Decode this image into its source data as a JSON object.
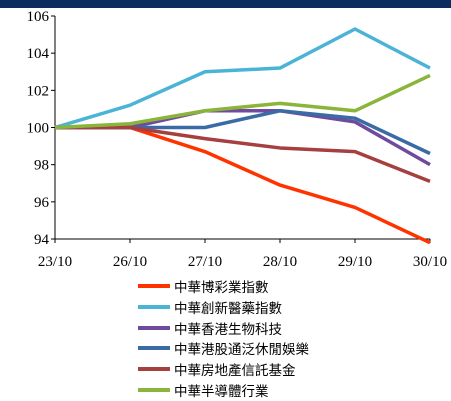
{
  "chart_data": {
    "type": "line",
    "x": [
      "23/10",
      "26/10",
      "27/10",
      "28/10",
      "29/10",
      "30/10"
    ],
    "ylim": [
      94,
      106
    ],
    "yticks": [
      94,
      96,
      98,
      100,
      102,
      104,
      106
    ],
    "grid": false,
    "legend_position": "bottom",
    "series": [
      {
        "name": "中華博彩業指數",
        "color": "#ff3300",
        "values": [
          100,
          100,
          98.7,
          96.9,
          95.7,
          93.8
        ]
      },
      {
        "name": "中華創新醫藥指數",
        "color": "#4bb3d6",
        "values": [
          100,
          101.2,
          103.0,
          103.2,
          105.3,
          103.2
        ]
      },
      {
        "name": "中華香港生物科技",
        "color": "#6f4a9e",
        "values": [
          100,
          100,
          100.9,
          100.9,
          100.3,
          98.0
        ]
      },
      {
        "name": "中華港股通泛休閒娛樂",
        "color": "#3a6ba5",
        "values": [
          100,
          100,
          100,
          100.9,
          100.5,
          98.6
        ]
      },
      {
        "name": "中華房地產信託基金",
        "color": "#a63f3f",
        "values": [
          100,
          100,
          99.4,
          98.9,
          98.7,
          97.1
        ]
      },
      {
        "name": "中華半導體行業",
        "color": "#8ab43a",
        "values": [
          100,
          100.2,
          100.9,
          101.3,
          100.9,
          102.8
        ]
      }
    ]
  }
}
